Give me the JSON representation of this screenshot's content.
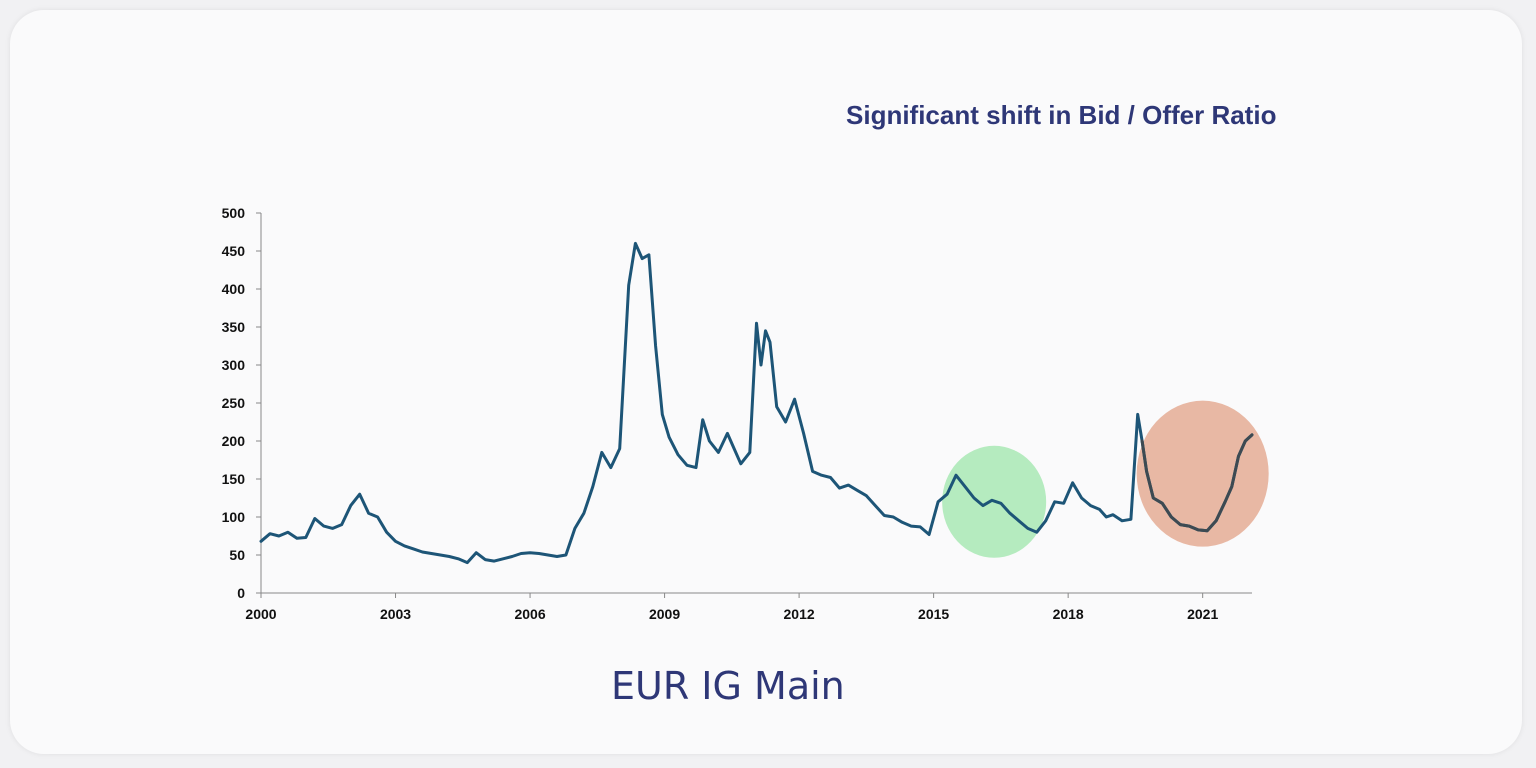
{
  "annotation": "Significant shift in Bid / Offer Ratio",
  "caption": "EUR IG Main",
  "colors": {
    "line": "#1d5577",
    "line_highlight": "#3d4a52",
    "green_circle": "#b5ebbf",
    "orange_circle": "#e8b8a4",
    "text_accent": "#2e3777"
  },
  "chart_data": {
    "type": "line",
    "title": "",
    "xlabel": "",
    "ylabel": "",
    "xlim": [
      2000,
      2022.1
    ],
    "ylim": [
      0,
      500
    ],
    "x_ticks": [
      "2000",
      "2003",
      "2006",
      "2009",
      "2012",
      "2015",
      "2018",
      "2021"
    ],
    "x_tick_values": [
      2000,
      2003,
      2006,
      2009,
      2012,
      2015,
      2018,
      2021
    ],
    "y_ticks": [
      "0",
      "50",
      "100",
      "150",
      "200",
      "250",
      "300",
      "350",
      "400",
      "450",
      "500"
    ],
    "y_tick_values": [
      0,
      50,
      100,
      150,
      200,
      250,
      300,
      350,
      400,
      450,
      500
    ],
    "grid": false,
    "highlights": [
      {
        "name": "green-circle",
        "x_center": 2016.35,
        "y_center": 120,
        "color": "#b5ebbf"
      },
      {
        "name": "orange-circle",
        "x_center": 2021.0,
        "y_center": 157,
        "color": "#e8b8a4"
      }
    ],
    "x": [
      2000.0,
      2000.2,
      2000.4,
      2000.6,
      2000.8,
      2001.0,
      2001.2,
      2001.4,
      2001.6,
      2001.8,
      2002.0,
      2002.2,
      2002.4,
      2002.6,
      2002.8,
      2003.0,
      2003.2,
      2003.4,
      2003.6,
      2003.8,
      2004.0,
      2004.2,
      2004.4,
      2004.6,
      2004.8,
      2005.0,
      2005.2,
      2005.4,
      2005.6,
      2005.8,
      2006.0,
      2006.2,
      2006.4,
      2006.6,
      2006.8,
      2007.0,
      2007.2,
      2007.4,
      2007.6,
      2007.8,
      2008.0,
      2008.2,
      2008.35,
      2008.5,
      2008.65,
      2008.8,
      2008.95,
      2009.1,
      2009.3,
      2009.5,
      2009.7,
      2009.85,
      2010.0,
      2010.2,
      2010.4,
      2010.55,
      2010.7,
      2010.9,
      2011.05,
      2011.15,
      2011.25,
      2011.35,
      2011.5,
      2011.7,
      2011.9,
      2012.1,
      2012.3,
      2012.5,
      2012.7,
      2012.9,
      2013.1,
      2013.3,
      2013.5,
      2013.7,
      2013.9,
      2014.1,
      2014.3,
      2014.5,
      2014.7,
      2014.9,
      2015.1,
      2015.3,
      2015.5,
      2015.7,
      2015.9,
      2016.1,
      2016.3,
      2016.5,
      2016.7,
      2016.9,
      2017.1,
      2017.3,
      2017.5,
      2017.7,
      2017.9,
      2018.1,
      2018.3,
      2018.5,
      2018.7,
      2018.85,
      2019.0,
      2019.2,
      2019.4,
      2019.55,
      2019.65,
      2019.75,
      2019.9,
      2020.1,
      2020.3,
      2020.5,
      2020.7,
      2020.9,
      2021.1,
      2021.3,
      2021.5,
      2021.65,
      2021.8,
      2021.95,
      2022.1
    ],
    "values": [
      68,
      78,
      75,
      80,
      72,
      73,
      98,
      88,
      85,
      90,
      115,
      130,
      105,
      100,
      80,
      68,
      62,
      58,
      54,
      52,
      50,
      48,
      45,
      40,
      53,
      44,
      42,
      45,
      48,
      52,
      53,
      52,
      50,
      48,
      50,
      85,
      105,
      140,
      185,
      165,
      190,
      405,
      460,
      440,
      445,
      325,
      235,
      205,
      182,
      168,
      165,
      228,
      200,
      185,
      210,
      190,
      170,
      185,
      355,
      300,
      345,
      330,
      245,
      225,
      255,
      210,
      160,
      155,
      152,
      138,
      142,
      135,
      128,
      115,
      102,
      100,
      93,
      88,
      87,
      77,
      120,
      130,
      155,
      140,
      125,
      115,
      122,
      118,
      105,
      95,
      85,
      80,
      95,
      120,
      118,
      145,
      125,
      115,
      110,
      100,
      103,
      95,
      97,
      235,
      200,
      160,
      125,
      118,
      100,
      90,
      88,
      83,
      82,
      95,
      120,
      140,
      180,
      200,
      208
    ]
  }
}
